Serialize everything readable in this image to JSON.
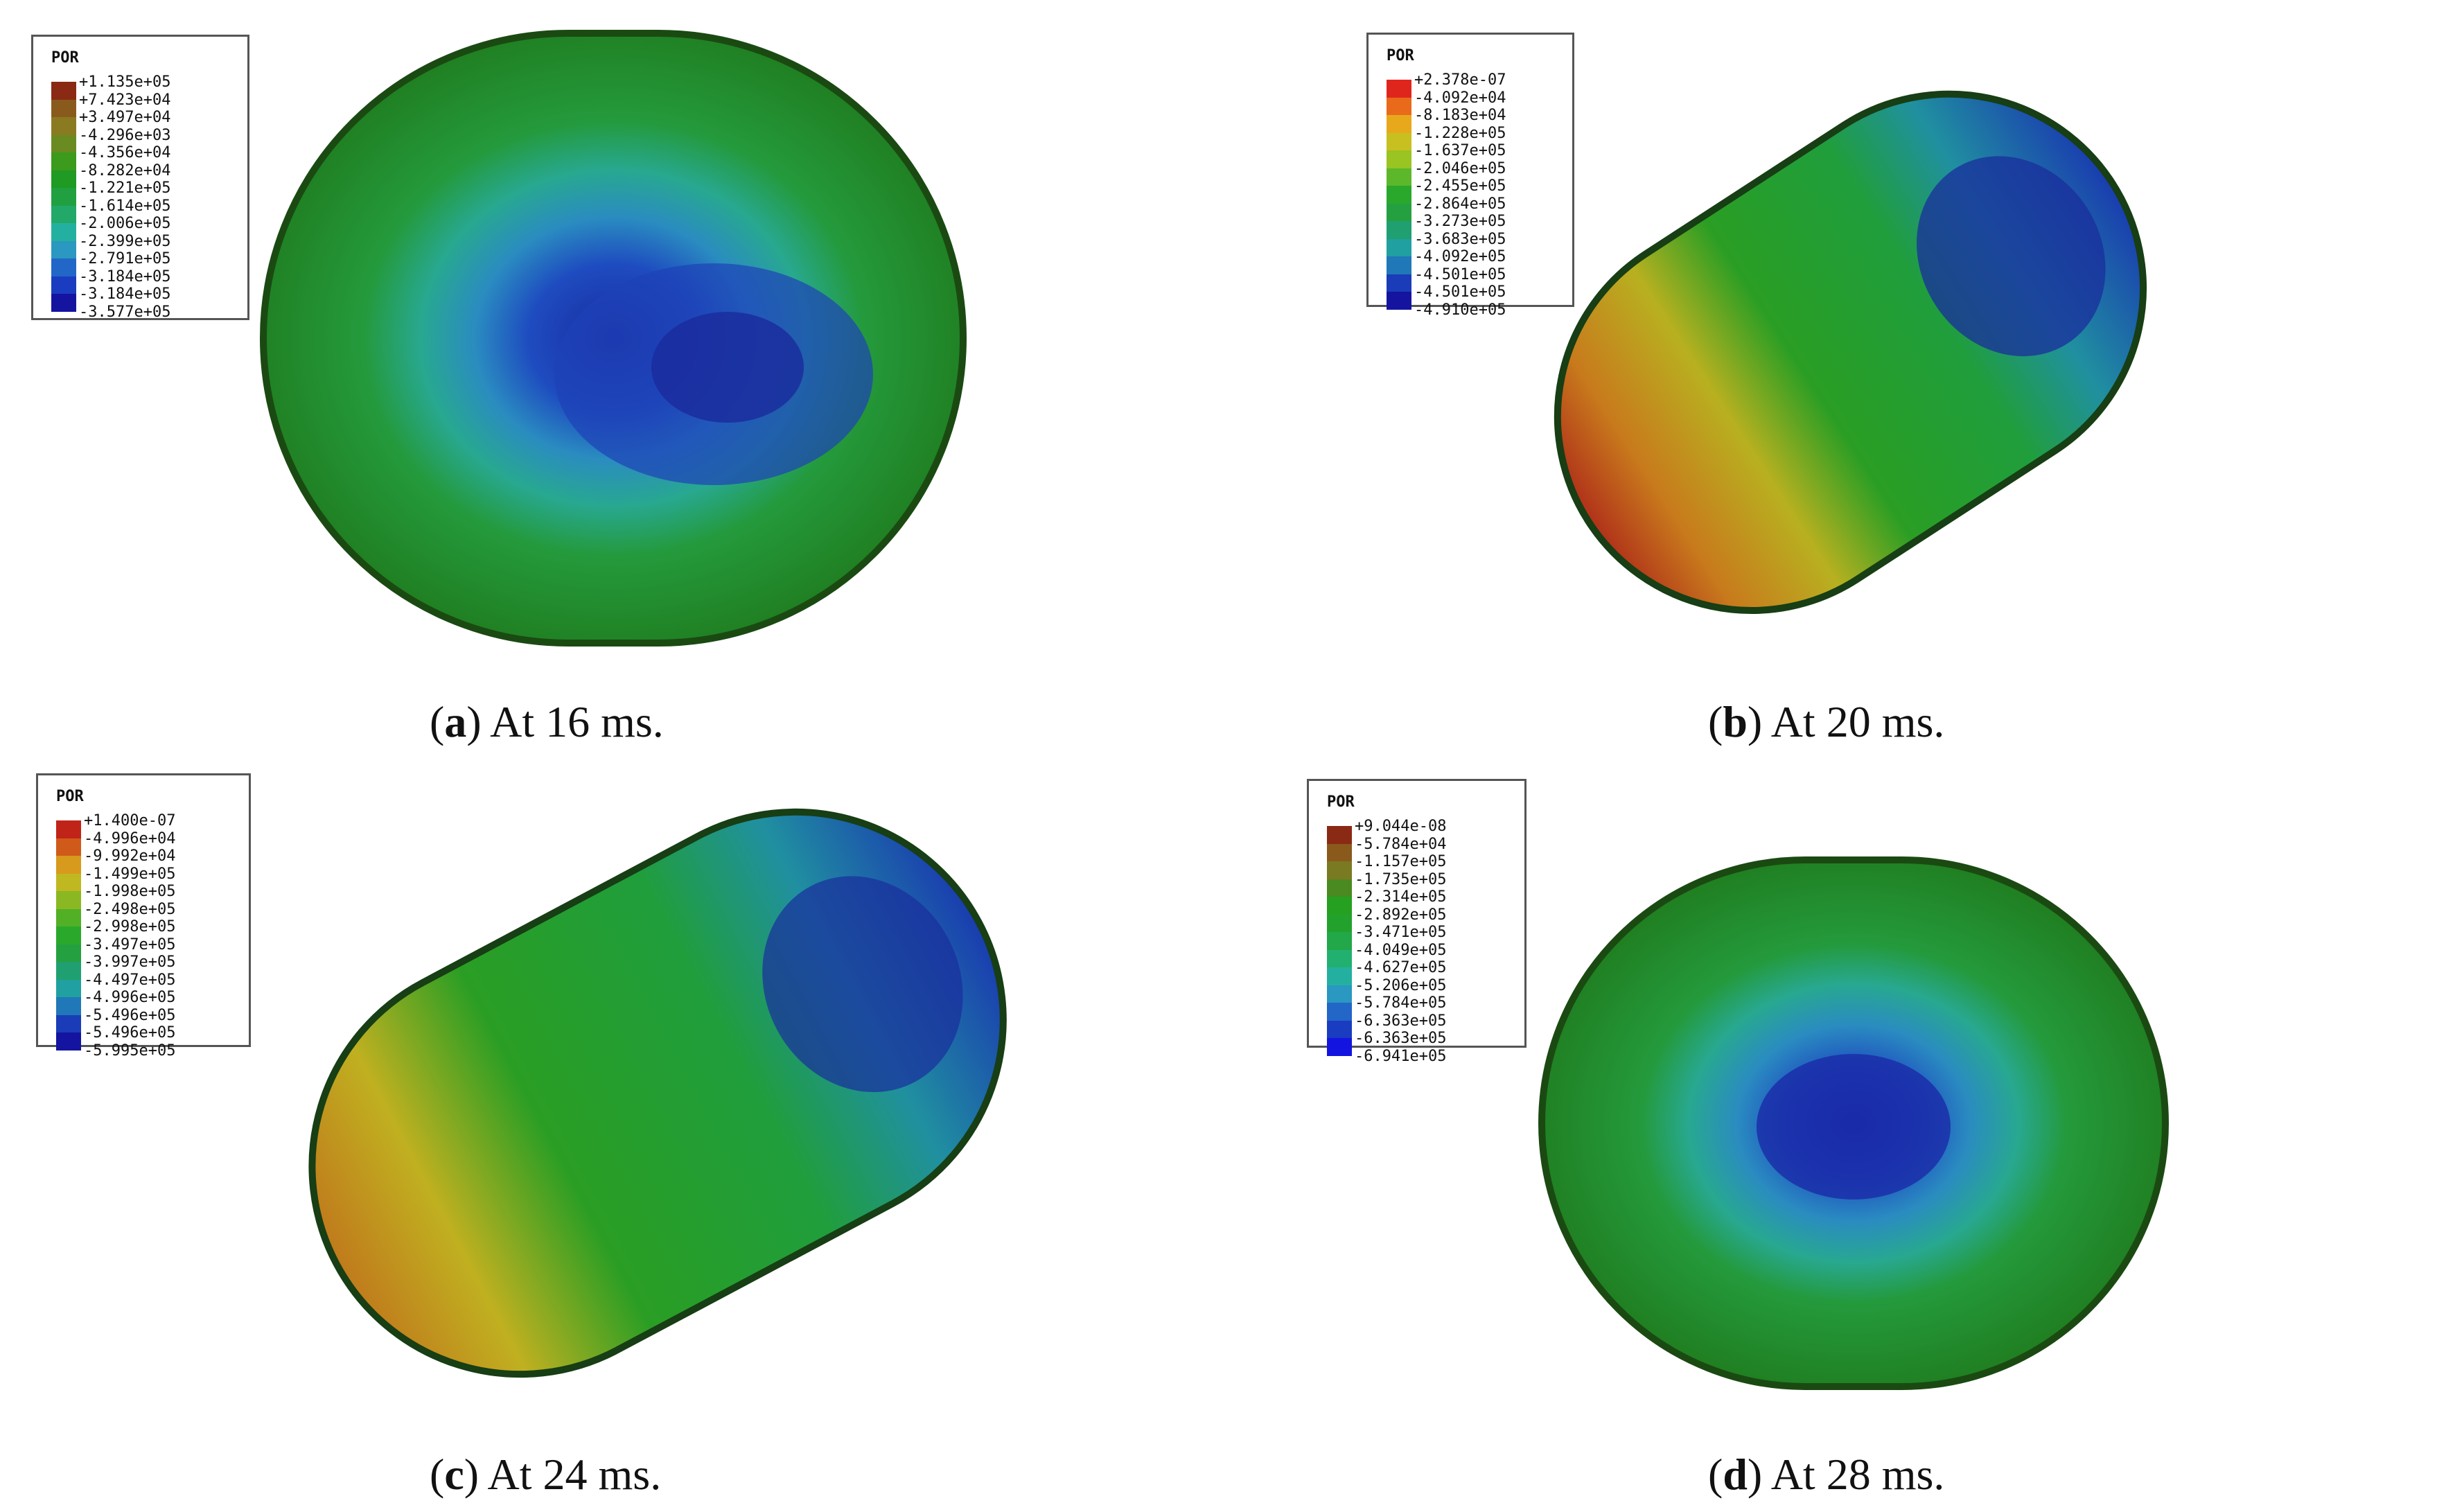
{
  "panels": [
    {
      "legend_title": "POR",
      "legend_values": [
        "+1.135e+05",
        "+7.423e+04",
        "+3.497e+04",
        "-4.296e+03",
        "-4.356e+04",
        "-8.282e+04",
        "-1.221e+05",
        "-1.614e+05",
        "-2.006e+05",
        "-2.399e+05",
        "-2.791e+05",
        "-3.184e+05",
        "-3.577e+05"
      ],
      "legend_colors": [
        "#8a2a14",
        "#8a5a1c",
        "#8a7a22",
        "#6a8a22",
        "#3c9a1c",
        "#1f9a22",
        "#20a040",
        "#22a868",
        "#24b0a0",
        "#2a98c0",
        "#2266c8",
        "#1a3cc0",
        "#1414a0"
      ],
      "caption_letter": "a",
      "caption_text": "At 16 ms."
    },
    {
      "legend_title": "POR",
      "legend_values": [
        "+2.378e-07",
        "-4.092e+04",
        "-8.183e+04",
        "-1.228e+05",
        "-1.637e+05",
        "-2.046e+05",
        "-2.455e+05",
        "-2.864e+05",
        "-3.273e+05",
        "-3.683e+05",
        "-4.092e+05",
        "-4.501e+05",
        "-4.910e+05"
      ],
      "legend_colors": [
        "#e0261c",
        "#e86a1a",
        "#e8a81c",
        "#c8c020",
        "#9ac422",
        "#5cb82a",
        "#2aa82c",
        "#24a040",
        "#20a070",
        "#20a0a0",
        "#2078b8",
        "#1a3cb8",
        "#1414a0"
      ],
      "caption_letter": "b",
      "caption_text": "At 20 ms."
    },
    {
      "legend_title": "POR",
      "legend_values": [
        "+1.400e-07",
        "-4.996e+04",
        "-9.992e+04",
        "-1.499e+05",
        "-1.998e+05",
        "-2.498e+05",
        "-2.998e+05",
        "-3.497e+05",
        "-3.997e+05",
        "-4.497e+05",
        "-4.996e+05",
        "-5.496e+05",
        "-5.995e+05"
      ],
      "legend_colors": [
        "#c02418",
        "#d05a1a",
        "#d89a1c",
        "#c0b820",
        "#8ab822",
        "#52b026",
        "#2aa82c",
        "#24a040",
        "#20a070",
        "#20a0a0",
        "#2078b8",
        "#1a3cb8",
        "#1414a0"
      ],
      "caption_letter": "c",
      "caption_text": "At 24 ms."
    },
    {
      "legend_title": "POR",
      "legend_values": [
        "+9.044e-08",
        "-5.784e+04",
        "-1.157e+05",
        "-1.735e+05",
        "-2.314e+05",
        "-2.892e+05",
        "-3.471e+05",
        "-4.049e+05",
        "-4.627e+05",
        "-5.206e+05",
        "-5.784e+05",
        "-6.363e+05",
        "-6.941e+05"
      ],
      "legend_colors": [
        "#8a2a14",
        "#8a5a1c",
        "#7a7a22",
        "#4a8a20",
        "#26a020",
        "#22a22c",
        "#22a848",
        "#22b070",
        "#24b0a0",
        "#2a98c0",
        "#2266c8",
        "#1a3cc0",
        "#1414e0"
      ],
      "caption_letter": "d",
      "caption_text": "At 28 ms."
    }
  ]
}
